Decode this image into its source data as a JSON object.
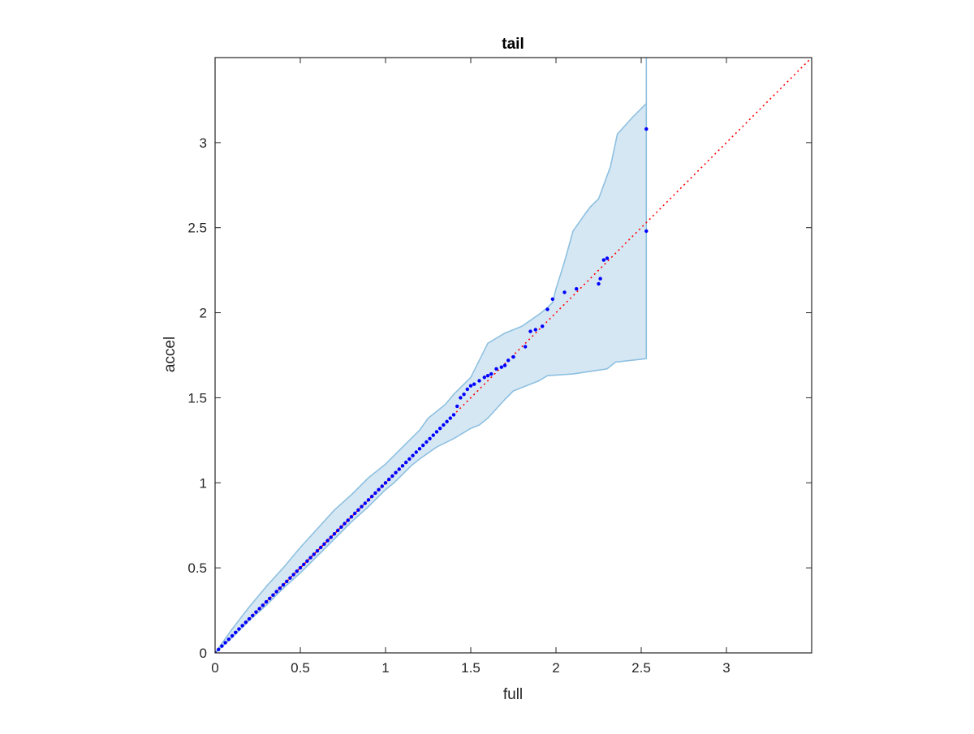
{
  "chart_data": {
    "type": "scatter",
    "title": "tail",
    "xlabel": "full",
    "ylabel": "accel",
    "xlim": [
      0,
      3.5
    ],
    "ylim": [
      0,
      3.5
    ],
    "xticks": [
      0,
      0.5,
      1,
      1.5,
      2,
      2.5,
      3
    ],
    "xtick_labels": [
      "0",
      "0.5",
      "1",
      "1.5",
      "2",
      "2.5",
      "3"
    ],
    "yticks": [
      0,
      0.5,
      1,
      1.5,
      2,
      2.5,
      3
    ],
    "ytick_labels": [
      "0",
      "0.5",
      "1",
      "1.5",
      "2",
      "2.5",
      "3"
    ],
    "grid": false,
    "colors": {
      "points": "#0000ff",
      "reference_line": "#ff0000",
      "band_fill": "#d6e7f4",
      "band_edge": "#8ec0e0",
      "axes": "#262626"
    },
    "reference_line": {
      "style": "dotted",
      "from": [
        0,
        0
      ],
      "to": [
        3.5,
        3.5
      ]
    },
    "band_upper": [
      [
        0,
        0
      ],
      [
        0.1,
        0.14
      ],
      [
        0.2,
        0.27
      ],
      [
        0.3,
        0.39
      ],
      [
        0.4,
        0.5
      ],
      [
        0.5,
        0.62
      ],
      [
        0.6,
        0.73
      ],
      [
        0.7,
        0.84
      ],
      [
        0.8,
        0.93
      ],
      [
        0.9,
        1.03
      ],
      [
        1.0,
        1.11
      ],
      [
        1.05,
        1.16
      ],
      [
        1.1,
        1.21
      ],
      [
        1.15,
        1.26
      ],
      [
        1.2,
        1.31
      ],
      [
        1.25,
        1.38
      ],
      [
        1.3,
        1.42
      ],
      [
        1.35,
        1.46
      ],
      [
        1.4,
        1.52
      ],
      [
        1.45,
        1.57
      ],
      [
        1.5,
        1.62
      ],
      [
        1.55,
        1.72
      ],
      [
        1.6,
        1.82
      ],
      [
        1.7,
        1.88
      ],
      [
        1.8,
        1.92
      ],
      [
        1.9,
        1.99
      ],
      [
        1.95,
        2.03
      ],
      [
        1.98,
        2.06
      ],
      [
        2.0,
        2.14
      ],
      [
        2.05,
        2.3
      ],
      [
        2.1,
        2.48
      ],
      [
        2.17,
        2.58
      ],
      [
        2.2,
        2.62
      ],
      [
        2.25,
        2.67
      ],
      [
        2.32,
        2.86
      ],
      [
        2.36,
        3.05
      ],
      [
        2.45,
        3.15
      ],
      [
        2.53,
        3.23
      ],
      [
        2.53,
        3.5
      ]
    ],
    "band_lower": [
      [
        2.53,
        1.85
      ],
      [
        2.53,
        1.73
      ],
      [
        2.35,
        1.71
      ],
      [
        2.3,
        1.67
      ],
      [
        2.1,
        1.64
      ],
      [
        1.95,
        1.63
      ],
      [
        1.9,
        1.6
      ],
      [
        1.75,
        1.54
      ],
      [
        1.7,
        1.49
      ],
      [
        1.6,
        1.38
      ],
      [
        1.55,
        1.34
      ],
      [
        1.5,
        1.32
      ],
      [
        1.4,
        1.26
      ],
      [
        1.3,
        1.21
      ],
      [
        1.2,
        1.14
      ],
      [
        1.15,
        1.1
      ],
      [
        1.1,
        1.05
      ],
      [
        1.05,
        1.0
      ],
      [
        1.0,
        0.96
      ],
      [
        0.9,
        0.86
      ],
      [
        0.8,
        0.77
      ],
      [
        0.7,
        0.67
      ],
      [
        0.6,
        0.57
      ],
      [
        0.5,
        0.47
      ],
      [
        0.4,
        0.38
      ],
      [
        0.3,
        0.28
      ],
      [
        0.2,
        0.19
      ],
      [
        0.1,
        0.09
      ],
      [
        0,
        0
      ]
    ],
    "points": [
      [
        0.0,
        0.0
      ],
      [
        0.02,
        0.02
      ],
      [
        0.04,
        0.04
      ],
      [
        0.06,
        0.06
      ],
      [
        0.08,
        0.08
      ],
      [
        0.1,
        0.1
      ],
      [
        0.12,
        0.12
      ],
      [
        0.14,
        0.14
      ],
      [
        0.16,
        0.16
      ],
      [
        0.18,
        0.18
      ],
      [
        0.2,
        0.2
      ],
      [
        0.22,
        0.22
      ],
      [
        0.24,
        0.24
      ],
      [
        0.26,
        0.26
      ],
      [
        0.28,
        0.28
      ],
      [
        0.3,
        0.3
      ],
      [
        0.32,
        0.32
      ],
      [
        0.34,
        0.34
      ],
      [
        0.36,
        0.36
      ],
      [
        0.38,
        0.38
      ],
      [
        0.4,
        0.4
      ],
      [
        0.42,
        0.42
      ],
      [
        0.44,
        0.44
      ],
      [
        0.46,
        0.46
      ],
      [
        0.48,
        0.48
      ],
      [
        0.5,
        0.5
      ],
      [
        0.52,
        0.52
      ],
      [
        0.54,
        0.54
      ],
      [
        0.56,
        0.56
      ],
      [
        0.58,
        0.58
      ],
      [
        0.6,
        0.6
      ],
      [
        0.62,
        0.62
      ],
      [
        0.64,
        0.64
      ],
      [
        0.66,
        0.66
      ],
      [
        0.68,
        0.68
      ],
      [
        0.7,
        0.7
      ],
      [
        0.72,
        0.72
      ],
      [
        0.74,
        0.74
      ],
      [
        0.76,
        0.76
      ],
      [
        0.78,
        0.78
      ],
      [
        0.8,
        0.8
      ],
      [
        0.82,
        0.82
      ],
      [
        0.84,
        0.84
      ],
      [
        0.86,
        0.86
      ],
      [
        0.88,
        0.88
      ],
      [
        0.9,
        0.9
      ],
      [
        0.92,
        0.92
      ],
      [
        0.94,
        0.94
      ],
      [
        0.96,
        0.96
      ],
      [
        0.98,
        0.98
      ],
      [
        1.0,
        1.0
      ],
      [
        1.02,
        1.02
      ],
      [
        1.04,
        1.04
      ],
      [
        1.06,
        1.06
      ],
      [
        1.08,
        1.08
      ],
      [
        1.1,
        1.1
      ],
      [
        1.12,
        1.12
      ],
      [
        1.14,
        1.14
      ],
      [
        1.16,
        1.16
      ],
      [
        1.18,
        1.18
      ],
      [
        1.2,
        1.2
      ],
      [
        1.22,
        1.22
      ],
      [
        1.24,
        1.24
      ],
      [
        1.26,
        1.26
      ],
      [
        1.28,
        1.28
      ],
      [
        1.3,
        1.3
      ],
      [
        1.32,
        1.32
      ],
      [
        1.34,
        1.34
      ],
      [
        1.36,
        1.36
      ],
      [
        1.38,
        1.38
      ],
      [
        1.4,
        1.4
      ],
      [
        1.42,
        1.45
      ],
      [
        1.44,
        1.5
      ],
      [
        1.46,
        1.52
      ],
      [
        1.48,
        1.55
      ],
      [
        1.5,
        1.57
      ],
      [
        1.52,
        1.58
      ],
      [
        1.55,
        1.6
      ],
      [
        1.58,
        1.62
      ],
      [
        1.6,
        1.63
      ],
      [
        1.62,
        1.64
      ],
      [
        1.65,
        1.67
      ],
      [
        1.68,
        1.68
      ],
      [
        1.7,
        1.69
      ],
      [
        1.72,
        1.72
      ],
      [
        1.75,
        1.74
      ],
      [
        1.82,
        1.8
      ],
      [
        1.85,
        1.89
      ],
      [
        1.88,
        1.9
      ],
      [
        1.92,
        1.92
      ],
      [
        1.95,
        2.02
      ],
      [
        1.98,
        2.08
      ],
      [
        2.05,
        2.12
      ],
      [
        2.12,
        2.14
      ],
      [
        2.25,
        2.17
      ],
      [
        2.26,
        2.2
      ],
      [
        2.28,
        2.31
      ],
      [
        2.3,
        2.32
      ],
      [
        2.53,
        2.48
      ],
      [
        2.53,
        3.08
      ]
    ]
  }
}
